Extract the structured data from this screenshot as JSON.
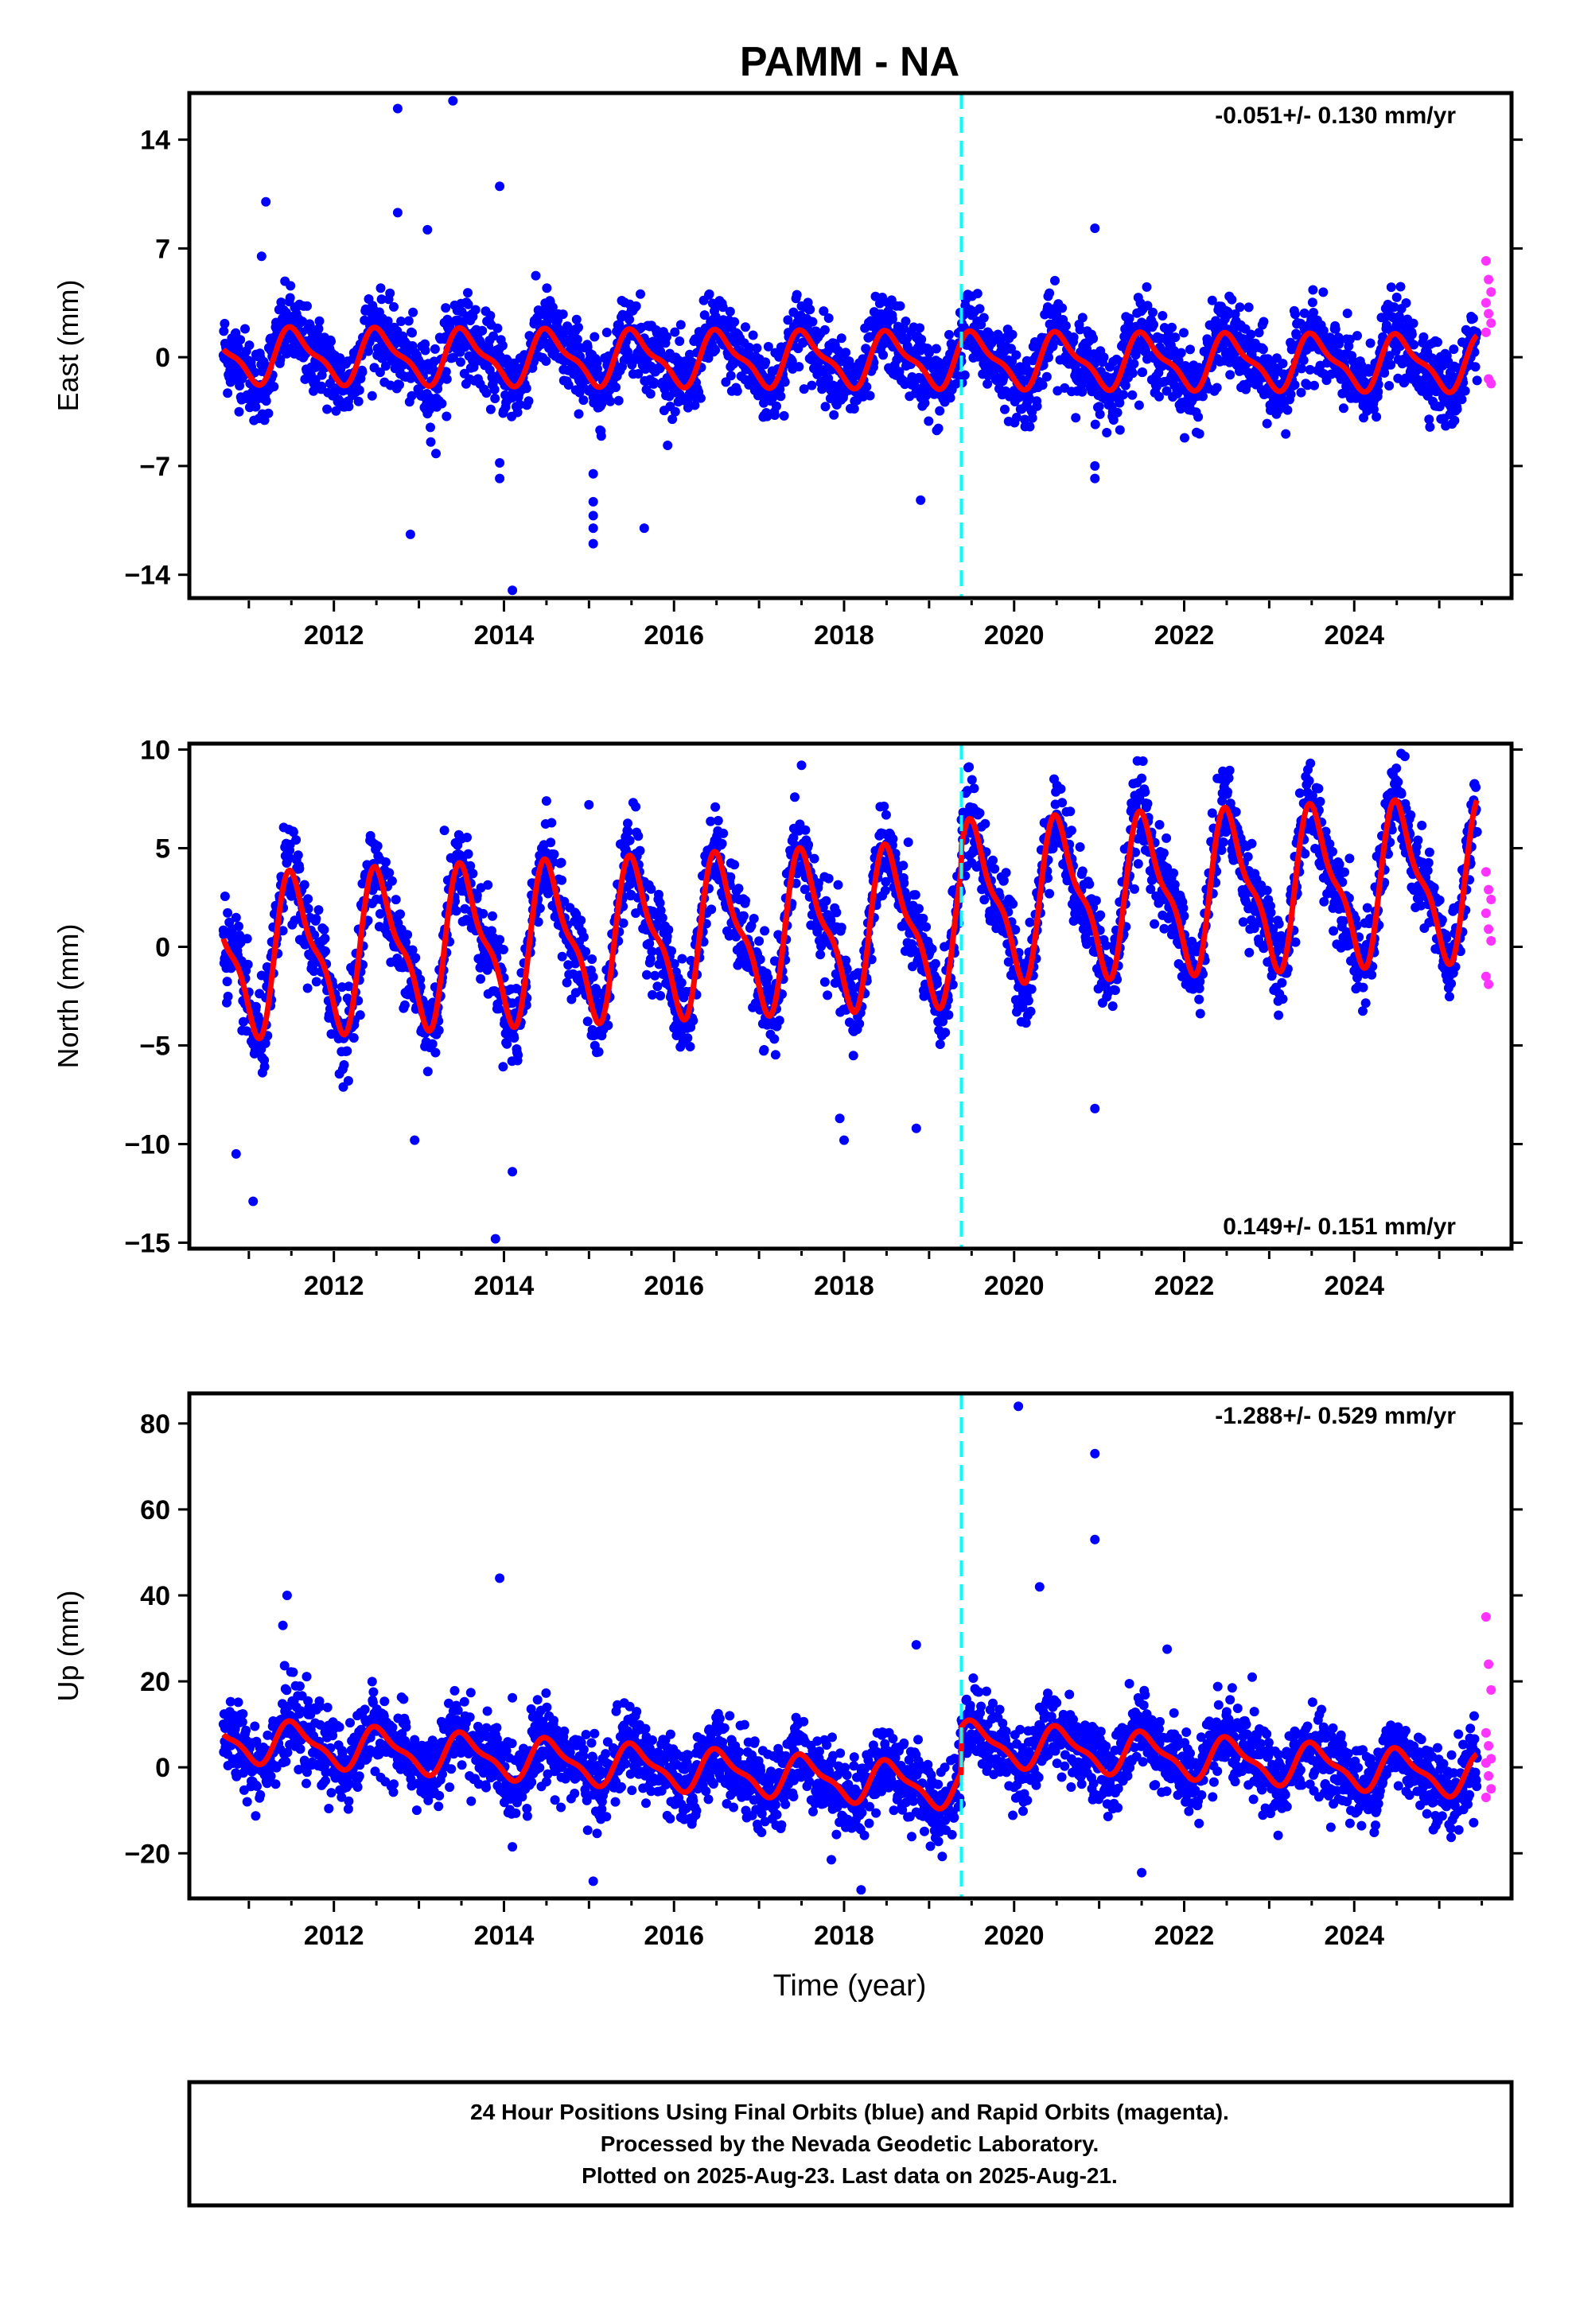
{
  "title": "PAMM - NA",
  "xlabel": "Time (year)",
  "colors": {
    "final": "#0000ff",
    "rapid": "#ff33ff",
    "model": "#ff0000",
    "event": "#00ffff",
    "frame": "#000000"
  },
  "event_year": 2019.38,
  "footer": {
    "line1": "24 Hour Positions Using Final Orbits (blue) and Rapid Orbits (magenta).",
    "line2": "Processed by the Nevada Geodetic Laboratory.",
    "line3": "Plotted on 2025-Aug-23. Last data on 2025-Aug-21."
  },
  "chart_data": [
    {
      "type": "scatter",
      "component": "East",
      "ylabel": "East (mm)",
      "rate_label": "-0.051+/- 0.130 mm/yr",
      "rate_position": "top-right",
      "xlim": [
        2010.3,
        2025.85
      ],
      "ylim": [
        -15.5,
        17
      ],
      "xticks": [
        2012,
        2014,
        2016,
        2018,
        2020,
        2022,
        2024
      ],
      "yticks": [
        14,
        7,
        0,
        -7,
        -14
      ],
      "xrange": [
        2010.7,
        2025.45
      ],
      "annual_amplitude": 1.6,
      "trend_start": 0.1,
      "trend_end": -0.4,
      "scatter_sd": 1.25,
      "rapid_values": [
        6.2,
        5.0,
        4.2,
        3.5,
        2.8,
        2.2,
        1.6,
        -1.4,
        -1.7
      ],
      "outliers": [
        [
          2011.2,
          10
        ],
        [
          2011.15,
          6.5
        ],
        [
          2012.75,
          16
        ],
        [
          2012.75,
          9.3
        ],
        [
          2013.1,
          8.2
        ],
        [
          2013.4,
          16.5
        ],
        [
          2013.95,
          11
        ],
        [
          2013.95,
          -6.8
        ],
        [
          2013.95,
          -7.8
        ],
        [
          2014.1,
          -15
        ],
        [
          2015.05,
          -7.5
        ],
        [
          2015.05,
          -9.3
        ],
        [
          2015.05,
          -10.2
        ],
        [
          2015.05,
          -11
        ],
        [
          2015.05,
          -12
        ],
        [
          2015.65,
          -11
        ],
        [
          2018.9,
          -9.2
        ],
        [
          2020.95,
          8.3
        ],
        [
          2020.95,
          -7
        ],
        [
          2020.95,
          -7.8
        ],
        [
          2012.9,
          -11.4
        ],
        [
          2013.2,
          -6.2
        ]
      ]
    },
    {
      "type": "scatter",
      "component": "North",
      "ylabel": "North (mm)",
      "rate_label": "0.149+/- 0.151 mm/yr",
      "rate_position": "bottom-right",
      "xlim": [
        2010.3,
        2025.85
      ],
      "ylim": [
        -15.3,
        10.3
      ],
      "xticks": [
        2012,
        2014,
        2016,
        2018,
        2020,
        2022,
        2024
      ],
      "yticks": [
        10,
        5,
        0,
        -5,
        -10,
        -15
      ],
      "xrange": [
        2010.7,
        2025.45
      ],
      "annual_amplitude": 3.6,
      "trend_start": -0.5,
      "trend_end": 2.3,
      "event_offset": 1.1,
      "scatter_sd": 1.1,
      "rapid_values": [
        3.8,
        2.9,
        2.4,
        1.7,
        0.9,
        0.3,
        -1.5,
        -1.9
      ],
      "outliers": [
        [
          2010.85,
          -10.5
        ],
        [
          2011.05,
          -12.9
        ],
        [
          2012.95,
          -9.8
        ],
        [
          2013.9,
          -14.8
        ],
        [
          2014.1,
          -11.4
        ],
        [
          2017.95,
          -8.7
        ],
        [
          2018.0,
          -9.8
        ],
        [
          2018.85,
          -9.2
        ],
        [
          2020.95,
          -8.2
        ],
        [
          2017.5,
          9.2
        ],
        [
          2024.55,
          9.8
        ],
        [
          2015.0,
          7.2
        ],
        [
          2015.55,
          7.1
        ],
        [
          2013.3,
          5.9
        ]
      ]
    },
    {
      "type": "scatter",
      "component": "Up",
      "ylabel": "Up (mm)",
      "rate_label": "-1.288+/- 0.529 mm/yr",
      "rate_position": "top-right",
      "xlim": [
        2010.3,
        2025.85
      ],
      "ylim": [
        -30.5,
        87
      ],
      "xticks": [
        2012,
        2014,
        2016,
        2018,
        2020,
        2022,
        2024
      ],
      "yticks": [
        80,
        60,
        40,
        20,
        0,
        -20
      ],
      "xrange": [
        2010.7,
        2025.45
      ],
      "annual_amplitude": 4.5,
      "trend_start": 6.5,
      "trend_end": -12.5,
      "event_offset": 10.5,
      "scatter_sd": 4.5,
      "rapid_values": [
        35,
        24,
        18,
        8,
        5,
        2,
        1,
        -2,
        -5,
        -7
      ],
      "outliers": [
        [
          2020.05,
          84
        ],
        [
          2020.95,
          73
        ],
        [
          2020.95,
          53
        ],
        [
          2020.3,
          42
        ],
        [
          2013.95,
          44
        ],
        [
          2011.45,
          40
        ],
        [
          2011.4,
          33
        ],
        [
          2018.85,
          28.5
        ],
        [
          2021.8,
          27.5
        ],
        [
          2015.05,
          -26.5
        ],
        [
          2018.2,
          -28.5
        ],
        [
          2021.5,
          -24.5
        ],
        [
          2014.1,
          -18.5
        ],
        [
          2017.85,
          -21.5
        ],
        [
          2022.8,
          21
        ]
      ]
    }
  ]
}
